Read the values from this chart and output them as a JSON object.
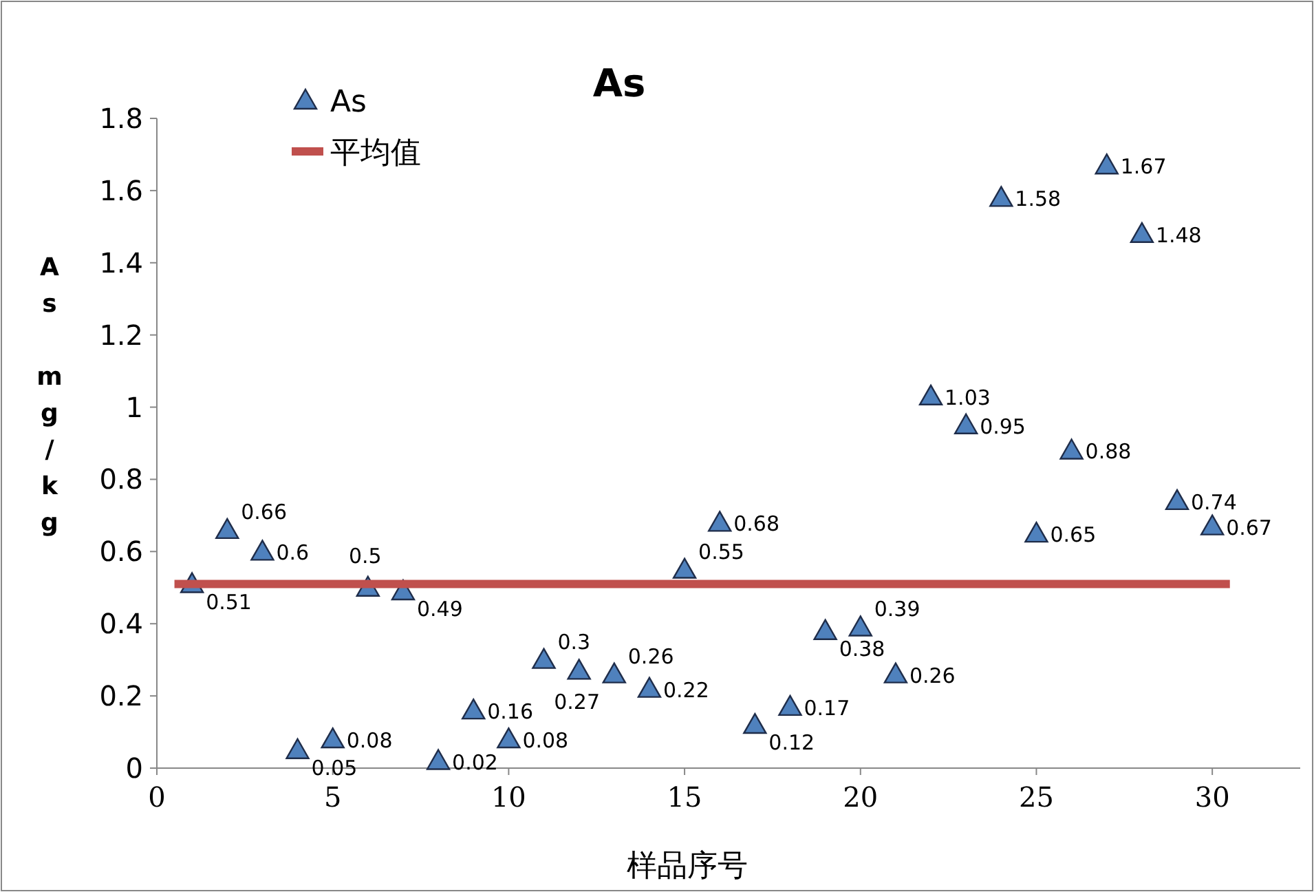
{
  "chart_data": {
    "type": "scatter",
    "title": "As",
    "xlabel": "样品序号",
    "ylabel": "As mg/kg",
    "xlim": [
      0,
      32.5
    ],
    "xticks": [
      0,
      5,
      10,
      15,
      20,
      25,
      30
    ],
    "ylim": [
      0,
      1.8
    ],
    "yticks": [
      0,
      0.2,
      0.4,
      0.6,
      0.8,
      1,
      1.2,
      1.4,
      1.6,
      1.8
    ],
    "grid": false,
    "legend": "top left",
    "series": [
      {
        "name": "As",
        "marker": "triangle",
        "color": "#4f81bd",
        "data_labels": true,
        "x": [
          1,
          2,
          3,
          4,
          5,
          6,
          7,
          8,
          9,
          10,
          11,
          12,
          13,
          14,
          15,
          16,
          17,
          18,
          19,
          20,
          21,
          22,
          23,
          24,
          25,
          26,
          27,
          28,
          29,
          30
        ],
        "values": [
          0.51,
          0.66,
          0.6,
          0.05,
          0.08,
          0.5,
          0.49,
          0.02,
          0.16,
          0.08,
          0.3,
          0.27,
          0.26,
          0.22,
          0.55,
          0.68,
          0.12,
          0.17,
          0.38,
          0.39,
          0.26,
          1.03,
          0.95,
          1.58,
          0.65,
          0.88,
          1.67,
          1.48,
          0.74,
          0.67
        ]
      },
      {
        "name": "平均值",
        "type": "line",
        "color": "#c0504d",
        "x": [
          0.5,
          30.5
        ],
        "values": [
          0.51,
          0.51
        ]
      }
    ]
  }
}
